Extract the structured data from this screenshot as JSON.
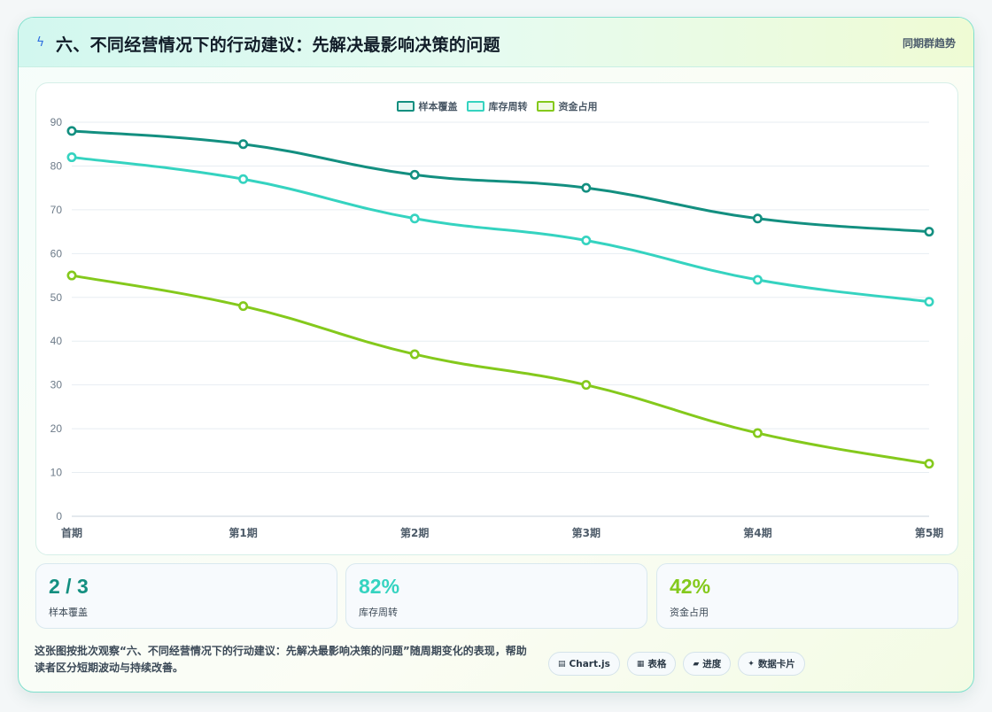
{
  "header": {
    "title": "六、不同经营情况下的行动建议：先解决最影响决策的问题",
    "right_label": "同期群趋势",
    "icon": "lightning-icon"
  },
  "chart_data": {
    "type": "line",
    "categories": [
      "首期",
      "第1期",
      "第2期",
      "第3期",
      "第4期",
      "第5期"
    ],
    "series": [
      {
        "name": "样本覆盖",
        "color": "#138f80",
        "values": [
          88,
          85,
          78,
          75,
          68,
          65
        ]
      },
      {
        "name": "库存周转",
        "color": "#35d3c0",
        "values": [
          82,
          77,
          68,
          63,
          54,
          49
        ]
      },
      {
        "name": "资金占用",
        "color": "#84c91c",
        "values": [
          55,
          48,
          37,
          30,
          19,
          12
        ]
      }
    ],
    "ylim": [
      0,
      90
    ],
    "yticks": [
      0,
      10,
      20,
      30,
      40,
      50,
      60,
      70,
      80,
      90
    ],
    "grid": true,
    "legend_position": "top-center"
  },
  "kpis": [
    {
      "value": "2 / 3",
      "label": "样本覆盖",
      "color": "#138f80"
    },
    {
      "value": "82%",
      "label": "库存周转",
      "color": "#35d3c0"
    },
    {
      "value": "42%",
      "label": "资金占用",
      "color": "#84c91c"
    }
  ],
  "footer": {
    "text": "这张图按批次观察“六、不同经营情况下的行动建议：先解决最影响决策的问题”随周期变化的表现，帮助读者区分短期波动与持续改善。",
    "tags": [
      {
        "icon": "chart-icon",
        "glyph": "▤",
        "label": "Chart.js"
      },
      {
        "icon": "table-icon",
        "glyph": "▦",
        "label": "表格"
      },
      {
        "icon": "progress-icon",
        "glyph": "▰",
        "label": "进度"
      },
      {
        "icon": "sparkle-icon",
        "glyph": "✦",
        "label": "数据卡片"
      }
    ]
  }
}
